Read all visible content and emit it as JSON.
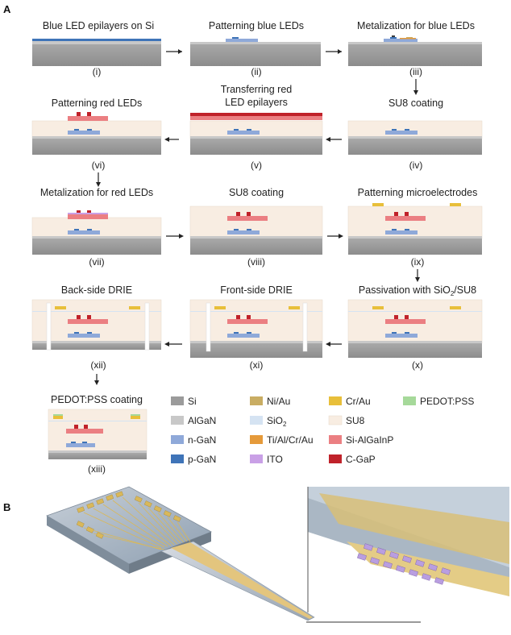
{
  "panels": {
    "a": "A",
    "b": "B"
  },
  "steps": [
    {
      "num": "(i)",
      "label": "Blue LED epilayers on Si"
    },
    {
      "num": "(ii)",
      "label": "Patterning blue LEDs"
    },
    {
      "num": "(iii)",
      "label": "Metalization for blue LEDs"
    },
    {
      "num": "(iv)",
      "label": "SU8 coating"
    },
    {
      "num": "(v)",
      "label_line1": "Transferring red",
      "label_line2": "LED epilayers"
    },
    {
      "num": "(vi)",
      "label": "Patterning red LEDs"
    },
    {
      "num": "(vii)",
      "label": "Metalization for red LEDs"
    },
    {
      "num": "(viii)",
      "label": "SU8 coating"
    },
    {
      "num": "(ix)",
      "label": "Patterning microelectrodes"
    },
    {
      "num": "(x)",
      "label_pre": "Passivation with SiO",
      "label_sub": "2",
      "label_post": "/SU8"
    },
    {
      "num": "(xi)",
      "label": "Front-side DRIE"
    },
    {
      "num": "(xii)",
      "label": "Back-side DRIE"
    },
    {
      "num": "(xiii)",
      "label": "PEDOT:PSS coating"
    }
  ],
  "legend": [
    {
      "name": "Si",
      "color": "#9b9b9b"
    },
    {
      "name": "Ni/Au",
      "color": "#c9ad63"
    },
    {
      "name": "Cr/Au",
      "color": "#e8bf3a"
    },
    {
      "name": "PEDOT:PSS",
      "color": "#a6d99a"
    },
    {
      "name": "AlGaN",
      "color": "#c8c8c8"
    },
    {
      "name": "SiO",
      "sub": "2",
      "color": "#d5e3f2"
    },
    {
      "name": "SU8",
      "color": "#f8ede2"
    },
    {
      "name": "n-GaN",
      "color": "#8fa9d9"
    },
    {
      "name": "Ti/Al/Cr/Au",
      "color": "#e59a3a"
    },
    {
      "name": "Si-AlGaInP",
      "color": "#eb7f82"
    },
    {
      "name": "p-GaN",
      "color": "#3f74b8"
    },
    {
      "name": "ITO",
      "color": "#c9a0e6"
    },
    {
      "name": "C-GaP",
      "color": "#c0222a"
    }
  ]
}
